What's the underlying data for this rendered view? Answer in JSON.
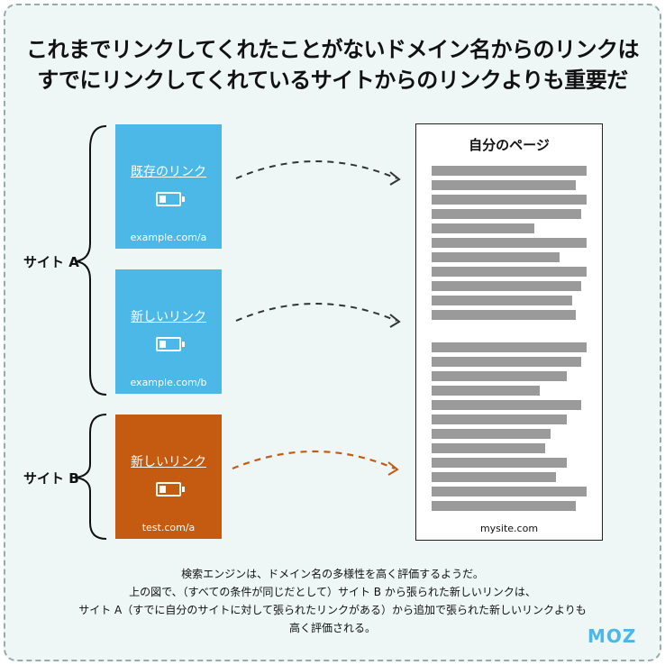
{
  "title": {
    "line1": "これまでリンクしてくれたことがないドメイン名からのリンクは",
    "line2": "すでにリンクしてくれているサイトからのリンクよりも重要だ"
  },
  "groups": {
    "site_a": "サイト A",
    "site_b": "サイト B"
  },
  "cards": [
    {
      "link_text": "既存のリンク",
      "url": "example.com/a",
      "color": "#4bb8e8"
    },
    {
      "link_text": "新しいリンク",
      "url": "example.com/b",
      "color": "#4bb8e8"
    },
    {
      "link_text": "新しいリンク",
      "url": "test.com/a",
      "color": "#c55a11"
    }
  ],
  "target_page": {
    "title": "自分のページ",
    "url": "mysite.com"
  },
  "arrow_colors": {
    "normal": "#333333",
    "highlight": "#c55a11"
  },
  "caption": {
    "line1": "検索エンジンは、ドメイン名の多様性を高く評価するようだ。",
    "line2": "上の図で、（すべての条件が同じだとして）サイト B から張られた新しいリンクは、",
    "line3": "サイト A（すでに自分のサイトに対して張られたリンクがある）から追加で張られた新しいリンクよりも",
    "line4": "高く評価される。"
  },
  "logo": "MOZ"
}
